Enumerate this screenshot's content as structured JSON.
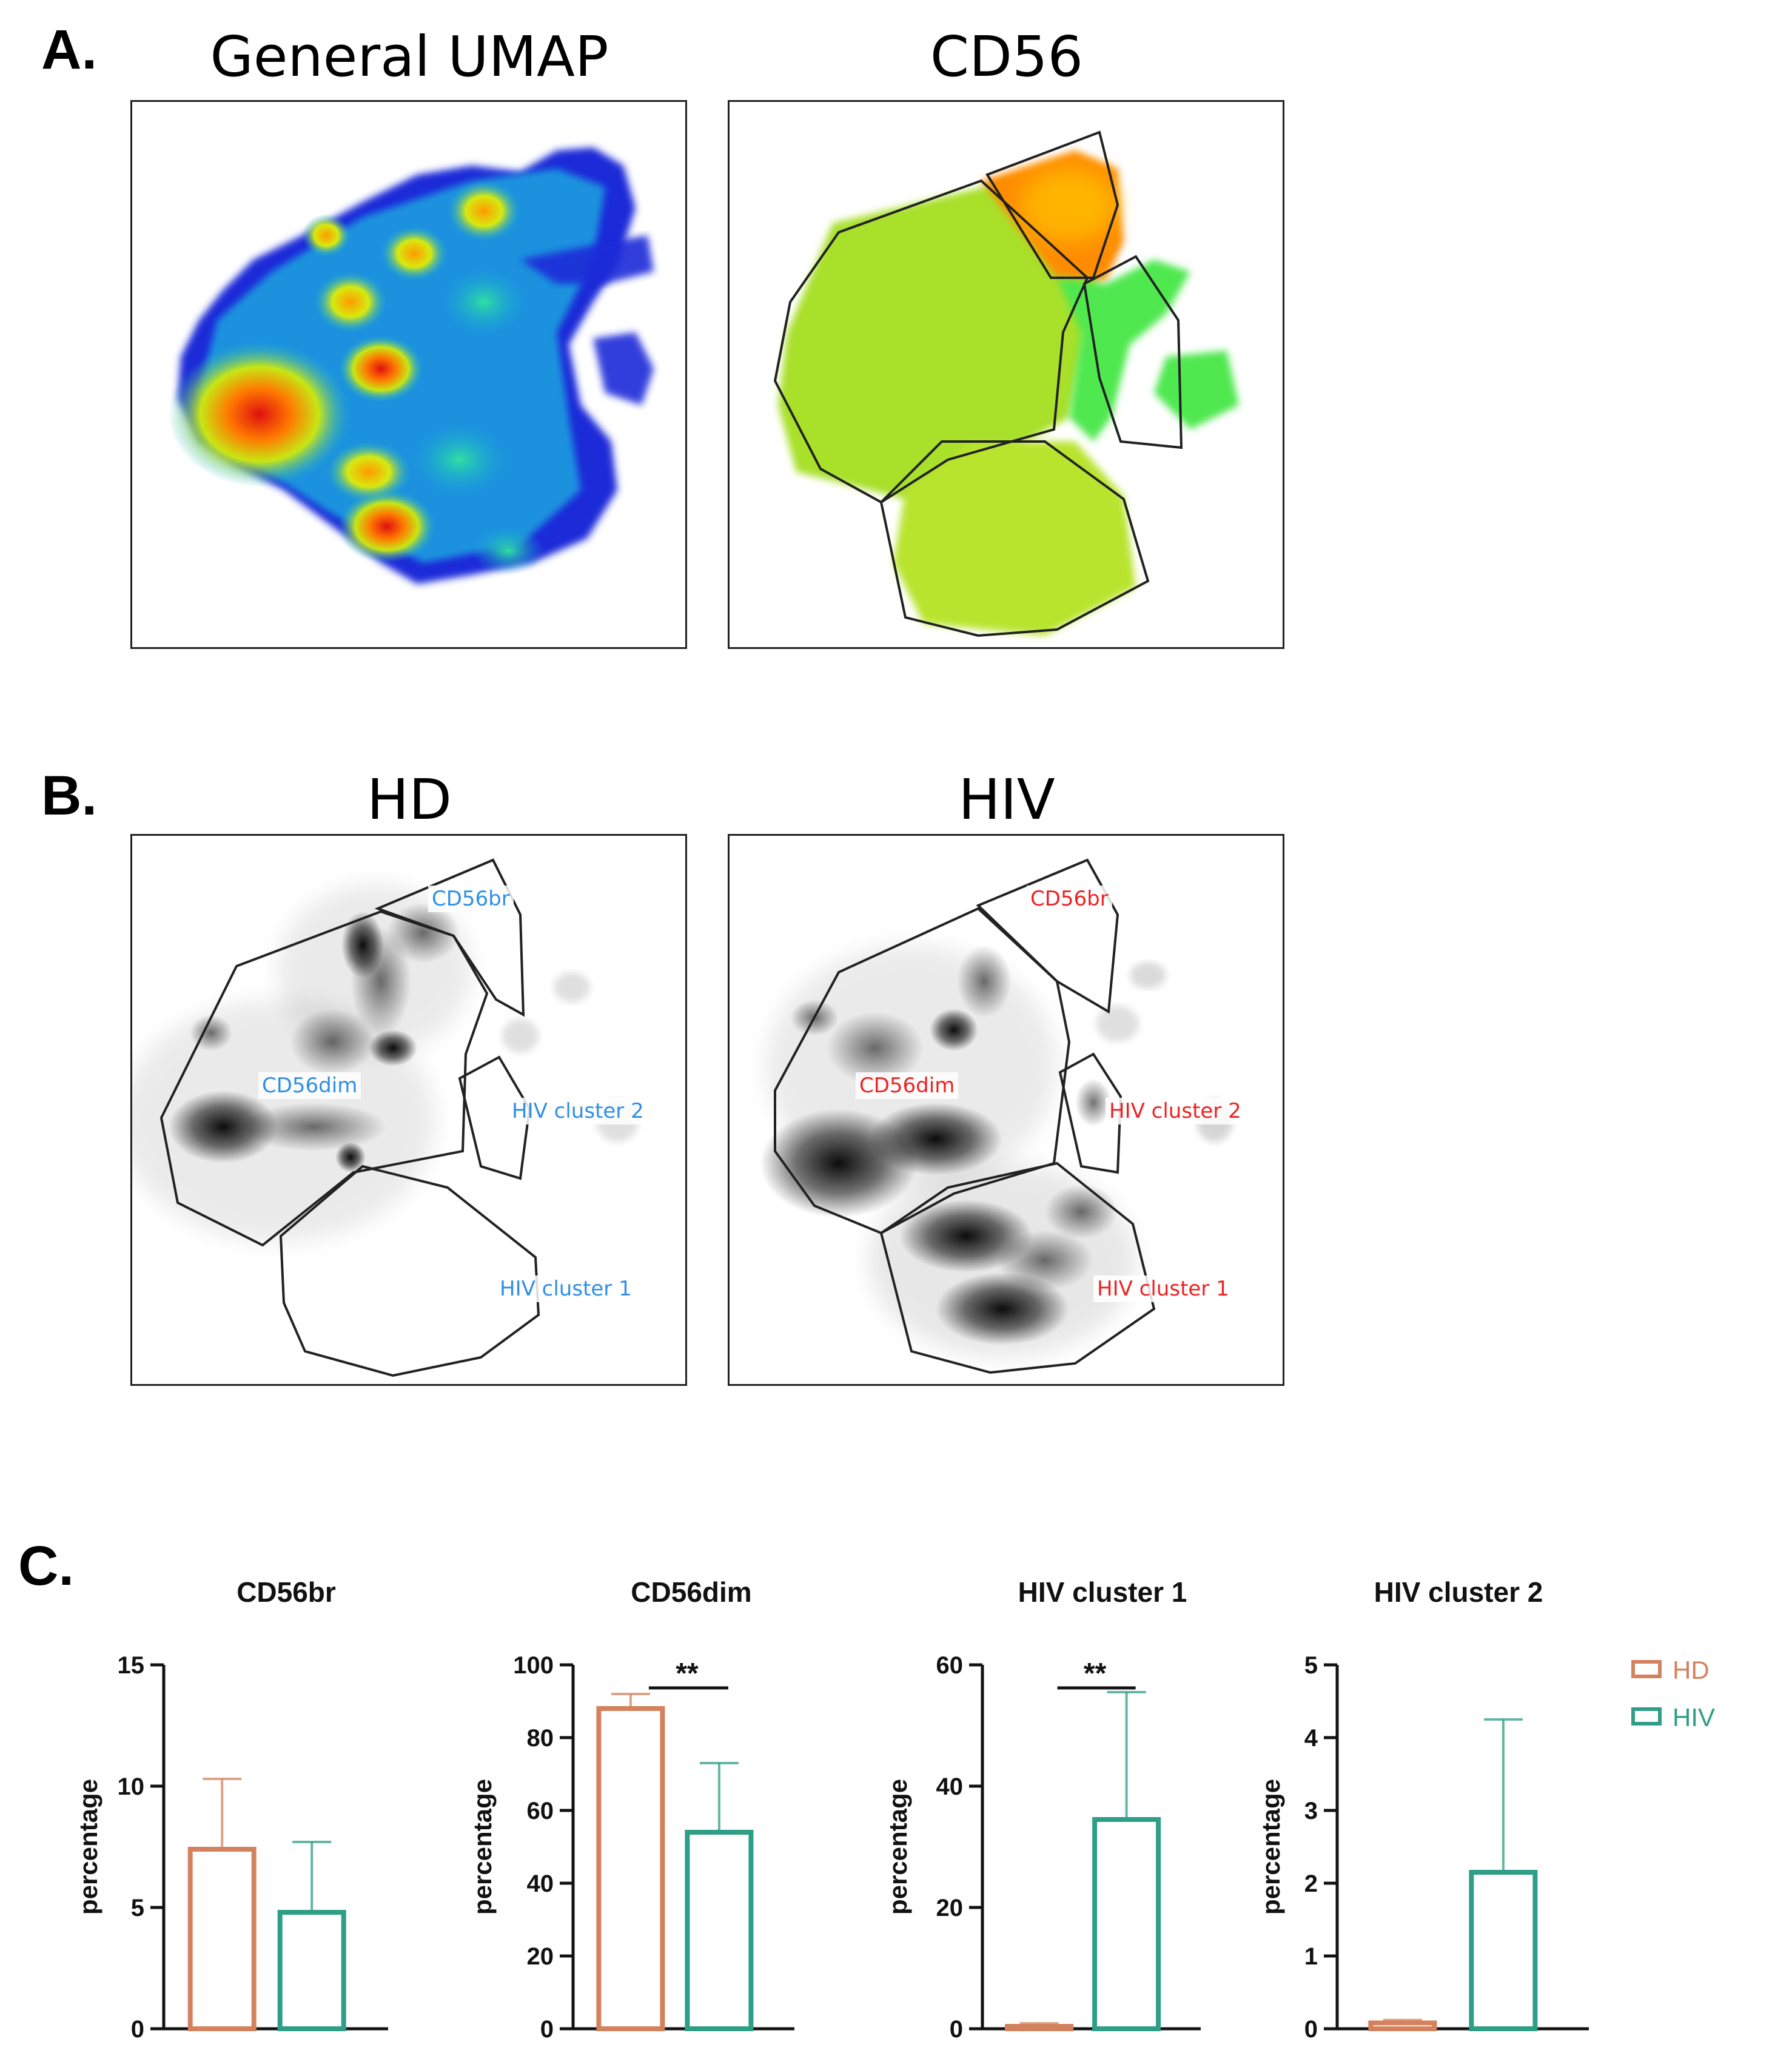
{
  "panels": {
    "a": {
      "letter": "A.",
      "left_title": "General UMAP",
      "right_title": "CD56"
    },
    "b": {
      "letter": "B.",
      "left_title": "HD",
      "right_title": "HIV",
      "hd_labels": [
        "CD56br",
        "CD56dim",
        "HIV cluster 2",
        "HIV cluster 1"
      ],
      "hiv_labels": [
        "CD56br",
        "CD56dim",
        "HIV cluster 2",
        "HIV cluster 1"
      ],
      "hd_label_color": "#2f8fe6",
      "hiv_label_color": "#ee2222"
    },
    "c": {
      "letter": "C."
    }
  },
  "legend": {
    "hd": "HD",
    "hiv": "HIV",
    "hd_color": "#d4825d",
    "hiv_color": "#2e9e86"
  },
  "chart_data": [
    {
      "type": "bar",
      "title": "CD56br",
      "ylabel": "percentage",
      "categories": [
        "HD",
        "HIV"
      ],
      "ylim": [
        0,
        15
      ],
      "yticks": [
        0,
        5,
        10,
        15
      ],
      "series": [
        {
          "name": "mean",
          "values": [
            7.4,
            4.8
          ]
        },
        {
          "name": "sd_upper",
          "values": [
            10.3,
            7.7
          ]
        }
      ],
      "significance": ""
    },
    {
      "type": "bar",
      "title": "CD56dim",
      "ylabel": "percentage",
      "categories": [
        "HD",
        "HIV"
      ],
      "ylim": [
        0,
        100
      ],
      "yticks": [
        0,
        20,
        40,
        60,
        80,
        100
      ],
      "series": [
        {
          "name": "mean",
          "values": [
            88,
            54
          ]
        },
        {
          "name": "sd_upper",
          "values": [
            92,
            73
          ]
        }
      ],
      "significance": "**"
    },
    {
      "type": "bar",
      "title": "HIV cluster 1",
      "ylabel": "percentage",
      "categories": [
        "HD",
        "HIV"
      ],
      "ylim": [
        0,
        60
      ],
      "yticks": [
        0,
        20,
        40,
        60
      ],
      "series": [
        {
          "name": "mean",
          "values": [
            0.4,
            34.5
          ]
        },
        {
          "name": "sd_upper",
          "values": [
            0.9,
            55.5
          ]
        }
      ],
      "significance": "**"
    },
    {
      "type": "bar",
      "title": "HIV cluster 2",
      "ylabel": "percentage",
      "categories": [
        "HD",
        "HIV"
      ],
      "ylim": [
        0,
        5
      ],
      "yticks": [
        0,
        1,
        2,
        3,
        4,
        5
      ],
      "series": [
        {
          "name": "mean",
          "values": [
            0.08,
            2.15
          ]
        },
        {
          "name": "sd_upper",
          "values": [
            0.12,
            4.25
          ]
        }
      ],
      "significance": ""
    }
  ]
}
